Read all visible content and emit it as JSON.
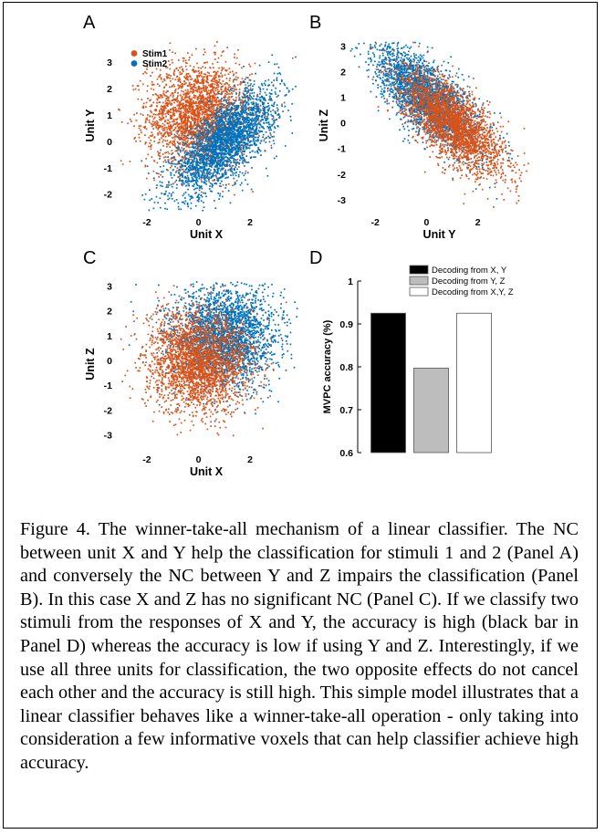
{
  "panels": [
    {
      "label": "A",
      "xlabel": "Unit X",
      "ylabel": "Unit Y"
    },
    {
      "label": "B",
      "xlabel": "Unit Y",
      "ylabel": "Unit Z"
    },
    {
      "label": "C",
      "xlabel": "Unit X",
      "ylabel": "Unit Z"
    },
    {
      "label": "D",
      "xlabel": "",
      "ylabel": "MVPC accuracy (%)"
    }
  ],
  "legend_scatter": [
    "Stim1",
    "Stim2"
  ],
  "colors": {
    "stim1": "#d95319",
    "stim2": "#0072bd"
  },
  "chart_data": [
    {
      "type": "scatter",
      "panel": "A",
      "xlabel": "Unit X",
      "ylabel": "Unit Y",
      "xticks": [
        -2,
        0,
        2
      ],
      "yticks": [
        -2,
        -1,
        0,
        1,
        2,
        3
      ],
      "xlim": [
        -3.2,
        3.8
      ],
      "ylim": [
        -2.6,
        3.8
      ],
      "legend": "top-left",
      "series": [
        {
          "name": "Stim1",
          "color": "#d95319",
          "mean": [
            0,
            1
          ],
          "sd": [
            1,
            1
          ],
          "corr": 0
        },
        {
          "name": "Stim2",
          "color": "#0072bd",
          "mean": [
            1,
            0
          ],
          "sd": [
            1,
            1
          ],
          "corr": 0.7
        }
      ]
    },
    {
      "type": "scatter",
      "panel": "B",
      "xlabel": "Unit Y",
      "ylabel": "Unit Z",
      "xticks": [
        -2,
        0,
        2
      ],
      "yticks": [
        -3,
        -2,
        -1,
        0,
        1,
        2,
        3
      ],
      "xlim": [
        -3.0,
        4.0
      ],
      "ylim": [
        -3.4,
        3.2
      ],
      "series": [
        {
          "name": "Stim2",
          "color": "#0072bd",
          "mean": [
            0,
            1
          ],
          "sd": [
            1,
            1
          ],
          "corr": -0.7
        },
        {
          "name": "Stim1",
          "color": "#d95319",
          "mean": [
            1,
            0
          ],
          "sd": [
            1,
            1
          ],
          "corr": -0.7
        }
      ]
    },
    {
      "type": "scatter",
      "panel": "C",
      "xlabel": "Unit X",
      "ylabel": "Unit Z",
      "xticks": [
        -2,
        0,
        2
      ],
      "yticks": [
        -3,
        -2,
        -1,
        0,
        1,
        2,
        3
      ],
      "xlim": [
        -3.2,
        3.8
      ],
      "ylim": [
        -3.5,
        3.2
      ],
      "series": [
        {
          "name": "Stim2",
          "color": "#0072bd",
          "mean": [
            1,
            1
          ],
          "sd": [
            1,
            1
          ],
          "corr": 0
        },
        {
          "name": "Stim1",
          "color": "#d95319",
          "mean": [
            0,
            0
          ],
          "sd": [
            1,
            1
          ],
          "corr": 0
        }
      ]
    },
    {
      "type": "bar",
      "panel": "D",
      "ylabel": "MVPC accuracy (%)",
      "yticks": [
        0.6,
        0.7,
        0.8,
        0.9,
        1
      ],
      "ytick_labels": [
        "0.6",
        "0.7",
        "0.8",
        "0.9",
        "1"
      ],
      "ylim": [
        0.6,
        1.0
      ],
      "legend": "top",
      "series": [
        {
          "name": "Decoding from X, Y",
          "value": 0.925,
          "fill": "#000000"
        },
        {
          "name": "Decoding from Y, Z",
          "value": 0.797,
          "fill": "#bdbdbd"
        },
        {
          "name": "Decoding from X,Y, Z",
          "value": 0.925,
          "fill": "#ffffff"
        }
      ]
    }
  ],
  "caption": "Figure 4. The winner-take-all mechanism of a linear classifier. The NC between unit X and Y help the classification for stimuli 1 and 2 (Panel A) and conversely the NC between Y and Z impairs the classification (Panel B). In this case X and Z has no significant NC (Panel C). If we classify two stimuli from the responses of X and Y, the accuracy is high (black bar in Panel D) whereas the accuracy is low if using Y and Z. Interestingly, if we use all three units for classification, the two opposite effects do not cancel each other and the accuracy is still high. This simple model illustrates that a linear classifier behaves like a winner-take-all operation - only taking into consideration a few informative voxels that can help classifier achieve high accuracy."
}
